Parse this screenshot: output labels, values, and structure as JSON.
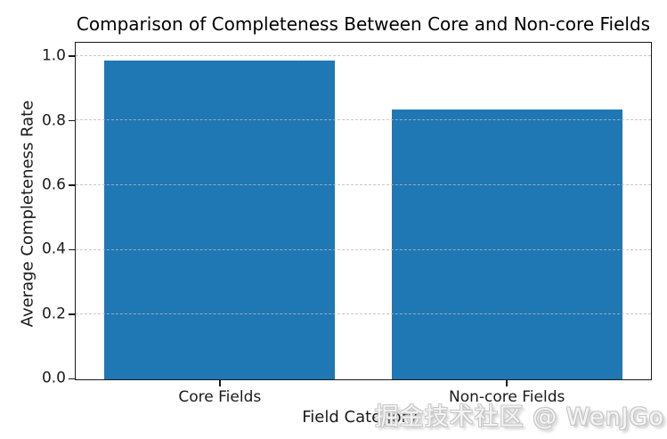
{
  "watermark": "掘金技术社区 @ WenJGo",
  "chart_data": {
    "type": "bar",
    "title": "Comparison of Completeness Between Core and Non-core Fields",
    "categories": [
      "Core Fields",
      "Non-core Fields"
    ],
    "values": [
      0.985,
      0.833
    ],
    "xlabel": "Field Category",
    "ylabel": "Average Completeness Rate",
    "yticks": [
      0.0,
      0.2,
      0.4,
      0.6,
      0.8,
      1.0
    ],
    "ytick_labels": [
      "0.0",
      "0.2",
      "0.4",
      "0.6",
      "0.8",
      "1.0"
    ],
    "ylim": [
      0,
      1.04
    ],
    "bar_width_fraction": 0.8,
    "grid": "y-axis, dashed, drawn over bars",
    "legend": "none",
    "bar_color": "#1f77b4",
    "grid_color": "#bdbdbd",
    "spine_color": "#1a1a1a",
    "text_color": "#1a1a1a"
  }
}
